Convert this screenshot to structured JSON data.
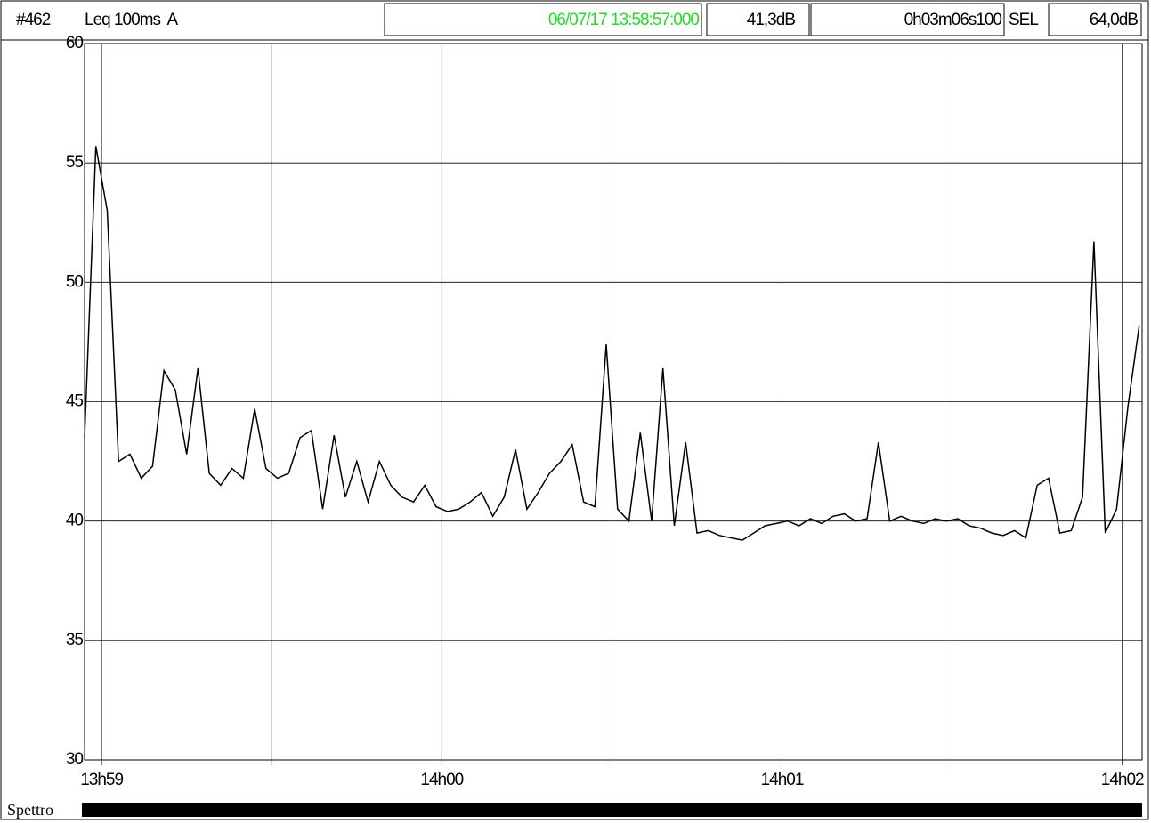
{
  "header": {
    "id": "#462",
    "measure": "Leq 100ms  A",
    "start": "06/07/17 13:58:57:000",
    "level": "41,3dB",
    "duration": "0h03m06s100",
    "sel_label": "SEL",
    "sel_value": "64,0dB"
  },
  "footer": {
    "label": "Spettro"
  },
  "chart_data": {
    "type": "line",
    "color": "#000000",
    "grid": true,
    "xlim": [
      50337,
      50523.5
    ],
    "ylim": [
      30,
      60
    ],
    "yticks": [
      30,
      35,
      40,
      45,
      50,
      55,
      60
    ],
    "xticks": [
      {
        "value": 50340,
        "label": "13h59"
      },
      {
        "value": 50400,
        "label": "14h00"
      },
      {
        "value": 50460,
        "label": "14h01"
      },
      {
        "value": 50520,
        "label": "14h02"
      }
    ],
    "xminor": [
      50370,
      50430,
      50490
    ],
    "x": [
      50337,
      50339,
      50341,
      50343,
      50345,
      50347,
      50349,
      50351,
      50353,
      50355,
      50357,
      50359,
      50361,
      50363,
      50365,
      50367,
      50369,
      50371,
      50373,
      50375,
      50377,
      50379,
      50381,
      50383,
      50385,
      50387,
      50389,
      50391,
      50393,
      50395,
      50397,
      50399,
      50401,
      50403,
      50405,
      50407,
      50409,
      50411,
      50413,
      50415,
      50417,
      50419,
      50421,
      50423,
      50425,
      50427,
      50429,
      50431,
      50433,
      50435,
      50437,
      50439,
      50441,
      50443,
      50445,
      50447,
      50449,
      50451,
      50453,
      50455,
      50457,
      50459,
      50461,
      50463,
      50465,
      50467,
      50469,
      50471,
      50473,
      50475,
      50477,
      50479,
      50481,
      50483,
      50485,
      50487,
      50489,
      50491,
      50493,
      50495,
      50497,
      50499,
      50501,
      50503,
      50505,
      50507,
      50509,
      50511,
      50513,
      50515,
      50517,
      50519,
      50521,
      50523
    ],
    "values": [
      43.5,
      55.7,
      53,
      42.5,
      42.8,
      41.8,
      42.3,
      46.3,
      45.5,
      42.8,
      46.4,
      42,
      41.5,
      42.2,
      41.8,
      44.7,
      42.2,
      41.8,
      42,
      43.5,
      43.8,
      40.5,
      43.6,
      41,
      42.5,
      40.8,
      42.5,
      41.5,
      41,
      40.8,
      41.5,
      40.6,
      40.4,
      40.5,
      40.8,
      41.2,
      40.2,
      41,
      43,
      40.5,
      41.2,
      42,
      42.5,
      43.2,
      40.8,
      40.6,
      47.4,
      40.5,
      40,
      43.7,
      40,
      46.4,
      39.8,
      43.3,
      39.5,
      39.6,
      39.4,
      39.3,
      39.2,
      39.5,
      39.8,
      39.9,
      40,
      39.8,
      40.1,
      39.9,
      40.2,
      40.3,
      40,
      40.1,
      43.3,
      40,
      40.2,
      40,
      39.9,
      40.1,
      40,
      40.1,
      39.8,
      39.7,
      39.5,
      39.4,
      39.6,
      39.3,
      41.5,
      41.8,
      39.5,
      39.6,
      41,
      51.7,
      39.5,
      40.5,
      44.8,
      48.2
    ]
  }
}
